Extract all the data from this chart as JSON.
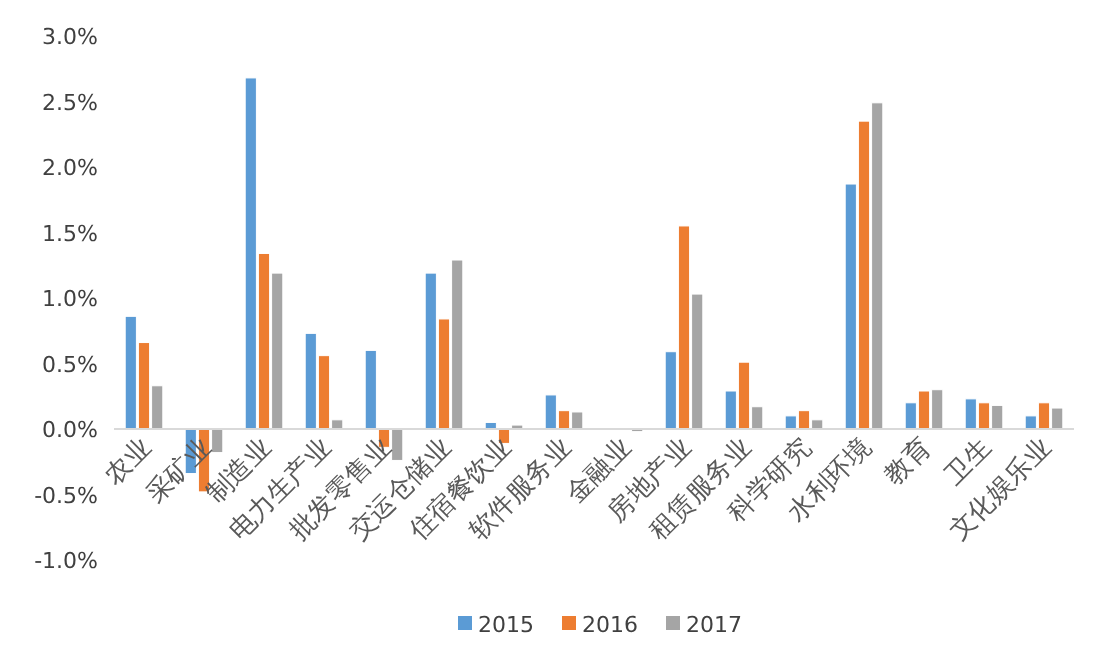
{
  "chart_data": {
    "type": "bar",
    "categories": [
      "农业",
      "采矿业",
      "制造业",
      "电力生产业",
      "批发零售业",
      "交运仓储业",
      "住宿餐饮业",
      "软件服务业",
      "金融业",
      "房地产业",
      "租赁服务业",
      "科学研究",
      "水利环境",
      "教育",
      "卫生",
      "文化娱乐业"
    ],
    "series": [
      {
        "name": "2015",
        "color": "#5b9bd5",
        "values": [
          0.86,
          -0.34,
          2.68,
          0.73,
          0.6,
          1.19,
          0.05,
          0.26,
          0.0,
          0.59,
          0.29,
          0.1,
          1.87,
          0.2,
          0.23,
          0.1
        ]
      },
      {
        "name": "2016",
        "color": "#ed7d31",
        "values": [
          0.66,
          -0.48,
          1.34,
          0.56,
          -0.14,
          0.84,
          -0.11,
          0.14,
          null,
          1.55,
          0.51,
          0.14,
          2.35,
          0.29,
          0.2,
          0.2
        ]
      },
      {
        "name": "2017",
        "color": "#a5a5a5",
        "values": [
          0.33,
          -0.18,
          1.19,
          0.07,
          -0.24,
          1.29,
          0.03,
          0.13,
          -0.02,
          1.03,
          0.17,
          0.07,
          2.49,
          0.3,
          0.18,
          0.16
        ]
      }
    ],
    "ylim": [
      -1,
      3
    ],
    "yticks": [
      {
        "value": -1,
        "label": "-1.0%"
      },
      {
        "value": -0.5,
        "label": "-0.5%"
      },
      {
        "value": 0,
        "label": "0.0%"
      },
      {
        "value": 0.5,
        "label": "0.5%"
      },
      {
        "value": 1,
        "label": "1.0%"
      },
      {
        "value": 1.5,
        "label": "1.5%"
      },
      {
        "value": 2,
        "label": "2.0%"
      },
      {
        "value": 2.5,
        "label": "2.5%"
      },
      {
        "value": 3,
        "label": "3.0%"
      }
    ],
    "legend": "bottom"
  }
}
